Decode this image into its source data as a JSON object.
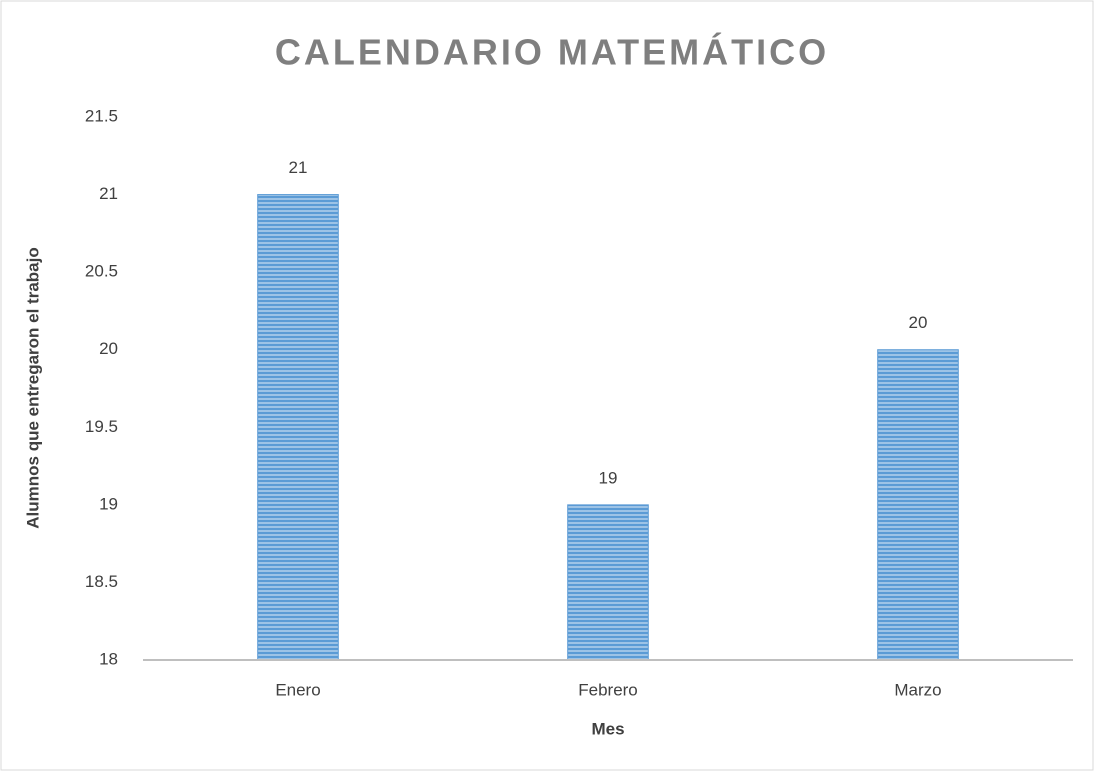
{
  "chart_data": {
    "type": "bar",
    "title": "CALENDARIO MATEMÁTICO",
    "x_label": "Mes",
    "y_label": "Alumnos que entregaron el trabajo",
    "categories": [
      "Enero",
      "Febrero",
      "Marzo"
    ],
    "values": [
      21,
      19,
      20
    ],
    "color": "#5b9bd5",
    "ylim": [
      18,
      21.5
    ],
    "yticks": [
      18,
      18.5,
      19,
      19.5,
      20,
      20.5,
      21,
      21.5
    ],
    "grid": false
  }
}
